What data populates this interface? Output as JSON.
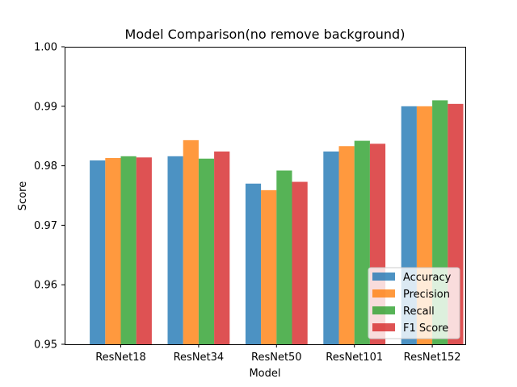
{
  "chart_data": {
    "type": "bar",
    "title": "Model Comparison(no remove background)",
    "xlabel": "Model",
    "ylabel": "Score",
    "ylim": [
      0.95,
      1.0
    ],
    "yticks": [
      "0.95",
      "0.96",
      "0.97",
      "0.98",
      "0.99",
      "1.00"
    ],
    "categories": [
      "ResNet18",
      "ResNet34",
      "ResNet50",
      "ResNet101",
      "ResNet152"
    ],
    "series": [
      {
        "name": "Accuracy",
        "color": "#1f77b4",
        "values": [
          0.9809,
          0.9816,
          0.977,
          0.9824,
          0.99
        ]
      },
      {
        "name": "Precision",
        "color": "#ff7f0e",
        "values": [
          0.9813,
          0.9843,
          0.9759,
          0.9833,
          0.99
        ]
      },
      {
        "name": "Recall",
        "color": "#2ca02c",
        "values": [
          0.9816,
          0.9812,
          0.9792,
          0.9842,
          0.991
        ]
      },
      {
        "name": "F1 Score",
        "color": "#d62728",
        "values": [
          0.9814,
          0.9824,
          0.9773,
          0.9837,
          0.9904
        ]
      }
    ],
    "bar_opacity": 0.8,
    "grid": false,
    "legend_position": "lower-right"
  }
}
